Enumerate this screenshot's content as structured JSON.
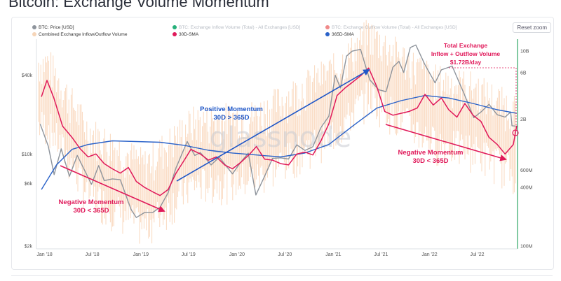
{
  "page_title": "Bitcoin: Exchange Volume Momentum",
  "reset_zoom_label": "Reset zoom",
  "watermark": "glassnode",
  "colors": {
    "price": "#8e949c",
    "volume": "#f6b98a",
    "sma30": "#e0195a",
    "sma365": "#2a62c9",
    "inflow": "#25b07a",
    "outflow": "#f08a8a",
    "vline": "#2ea865"
  },
  "legend": [
    {
      "label": "BTC: Price [USD]",
      "color": "#8e949c",
      "faded": false
    },
    {
      "label": "BTC: Exchange Inflow Volume (Total) - All Exchanges [USD]",
      "color": "#25b07a",
      "faded": true
    },
    {
      "label": "BTC: Exchange Outflow Volume (Total) - All Exchanges [USD]",
      "color": "#f08a8a",
      "faded": true
    },
    {
      "label": "Combined Exchange Inflow/Outflow Volume",
      "color": "#f6d5b8",
      "faded": false
    },
    {
      "label": "30D-SMA",
      "color": "#e0195a",
      "faded": false
    },
    {
      "label": "365D-SMA",
      "color": "#2a62c9",
      "faded": false
    }
  ],
  "annotations": {
    "neg1": [
      "Negative Momentum",
      "30D < 365D"
    ],
    "pos": [
      "Positive Momentum",
      "30D > 365D"
    ],
    "neg2": [
      "Negative Momentum",
      "30D < 365D"
    ],
    "total": [
      "Total Exchange",
      "Inflow + Outflow Volume",
      "$1.72B/day"
    ]
  },
  "chart_data": {
    "type": "line",
    "title": "Bitcoin: Exchange Volume Momentum",
    "x_axis": {
      "type": "date",
      "range": [
        "2017-12",
        "2022-12"
      ],
      "ticks": [
        "Jan '18",
        "Jul '18",
        "Jan '19",
        "Jul '19",
        "Jan '20",
        "Jul '20",
        "Jan '21",
        "Jul '21",
        "Jan '22",
        "Jul '22"
      ]
    },
    "y_left": {
      "scale": "log",
      "unit": "USD",
      "ticks": [
        "$2k",
        "$6k",
        "$10k",
        "$40k"
      ]
    },
    "y_right": {
      "scale": "log",
      "unit": "USD/day",
      "ticks": [
        "100M",
        "400M",
        "600M",
        "2B",
        "6B",
        "10B"
      ]
    },
    "grid": false,
    "legend_position": "top",
    "series": [
      {
        "name": "BTC: Price [USD]",
        "axis": "left",
        "points": [
          [
            "2017-12-15",
            17000
          ],
          [
            "2018-01-15",
            11500
          ],
          [
            "2018-02-06",
            7000
          ],
          [
            "2018-03-05",
            11000
          ],
          [
            "2018-04-05",
            6800
          ],
          [
            "2018-05-05",
            9800
          ],
          [
            "2018-06-28",
            5900
          ],
          [
            "2018-07-25",
            8200
          ],
          [
            "2018-08-15",
            6300
          ],
          [
            "2018-09-15",
            6500
          ],
          [
            "2018-10-15",
            6400
          ],
          [
            "2018-11-25",
            3800
          ],
          [
            "2018-12-15",
            3300
          ],
          [
            "2019-01-15",
            3600
          ],
          [
            "2019-02-15",
            3600
          ],
          [
            "2019-03-15",
            3950
          ],
          [
            "2019-04-15",
            5100
          ],
          [
            "2019-05-15",
            7900
          ],
          [
            "2019-06-26",
            12500
          ],
          [
            "2019-07-25",
            9800
          ],
          [
            "2019-08-15",
            10300
          ],
          [
            "2019-09-25",
            8300
          ],
          [
            "2019-10-26",
            9500
          ],
          [
            "2019-12-15",
            7100
          ],
          [
            "2020-01-15",
            8700
          ],
          [
            "2020-02-13",
            10200
          ],
          [
            "2020-03-13",
            4900
          ],
          [
            "2020-04-15",
            6800
          ],
          [
            "2020-05-15",
            9300
          ],
          [
            "2020-06-15",
            9400
          ],
          [
            "2020-07-15",
            9200
          ],
          [
            "2020-08-15",
            11800
          ],
          [
            "2020-09-15",
            10700
          ],
          [
            "2020-10-15",
            11400
          ],
          [
            "2020-11-15",
            16000
          ],
          [
            "2020-12-15",
            19500
          ],
          [
            "2021-01-08",
            40000
          ],
          [
            "2021-01-28",
            32000
          ],
          [
            "2021-02-20",
            56000
          ],
          [
            "2021-03-13",
            61000
          ],
          [
            "2021-04-14",
            63000
          ],
          [
            "2021-05-19",
            37000
          ],
          [
            "2021-06-22",
            31000
          ],
          [
            "2021-07-20",
            30000
          ],
          [
            "2021-08-15",
            46000
          ],
          [
            "2021-09-07",
            51000
          ],
          [
            "2021-09-25",
            42000
          ],
          [
            "2021-10-20",
            65000
          ],
          [
            "2021-11-10",
            68000
          ],
          [
            "2021-12-15",
            48000
          ],
          [
            "2022-01-22",
            35000
          ],
          [
            "2022-02-15",
            44000
          ],
          [
            "2022-03-28",
            47000
          ],
          [
            "2022-05-12",
            29000
          ],
          [
            "2022-06-18",
            19000
          ],
          [
            "2022-07-15",
            21000
          ],
          [
            "2022-08-15",
            24000
          ],
          [
            "2022-09-15",
            20000
          ],
          [
            "2022-10-15",
            19200
          ],
          [
            "2022-11-05",
            21000
          ],
          [
            "2022-11-10",
            16500
          ],
          [
            "2022-11-25",
            16400
          ]
        ]
      },
      {
        "name": "30D-SMA",
        "axis": "right",
        "points": [
          [
            "2017-12-20",
            3400
          ],
          [
            "2018-01-10",
            5000
          ],
          [
            "2018-02-05",
            3300
          ],
          [
            "2018-03-10",
            1700
          ],
          [
            "2018-04-15",
            1300
          ],
          [
            "2018-05-15",
            1000
          ],
          [
            "2018-06-15",
            820
          ],
          [
            "2018-07-15",
            880
          ],
          [
            "2018-08-15",
            700
          ],
          [
            "2018-09-15",
            620
          ],
          [
            "2018-10-15",
            560
          ],
          [
            "2018-11-15",
            640
          ],
          [
            "2018-12-15",
            460
          ],
          [
            "2019-01-15",
            400
          ],
          [
            "2019-02-15",
            360
          ],
          [
            "2019-03-15",
            330
          ],
          [
            "2019-04-15",
            380
          ],
          [
            "2019-05-15",
            560
          ],
          [
            "2019-06-15",
            760
          ],
          [
            "2019-07-10",
            980
          ],
          [
            "2019-08-15",
            880
          ],
          [
            "2019-09-15",
            760
          ],
          [
            "2019-10-15",
            820
          ],
          [
            "2019-11-15",
            680
          ],
          [
            "2019-12-15",
            620
          ],
          [
            "2020-01-15",
            720
          ],
          [
            "2020-02-15",
            860
          ],
          [
            "2020-03-15",
            1050
          ],
          [
            "2020-04-15",
            780
          ],
          [
            "2020-05-15",
            760
          ],
          [
            "2020-06-15",
            700
          ],
          [
            "2020-07-15",
            680
          ],
          [
            "2020-08-15",
            880
          ],
          [
            "2020-09-15",
            920
          ],
          [
            "2020-10-15",
            860
          ],
          [
            "2020-11-15",
            1200
          ],
          [
            "2020-12-15",
            1800
          ],
          [
            "2021-01-15",
            3500
          ],
          [
            "2021-02-15",
            4200
          ],
          [
            "2021-03-15",
            4800
          ],
          [
            "2021-04-15",
            5600
          ],
          [
            "2021-05-15",
            6700
          ],
          [
            "2021-06-15",
            4300
          ],
          [
            "2021-07-15",
            2400
          ],
          [
            "2021-08-15",
            2200
          ],
          [
            "2021-09-15",
            2300
          ],
          [
            "2021-10-15",
            2400
          ],
          [
            "2021-11-15",
            2600
          ],
          [
            "2021-12-15",
            3600
          ],
          [
            "2022-01-15",
            2800
          ],
          [
            "2022-02-15",
            3300
          ],
          [
            "2022-03-15",
            2500
          ],
          [
            "2022-04-15",
            2100
          ],
          [
            "2022-05-15",
            2900
          ],
          [
            "2022-06-15",
            2200
          ],
          [
            "2022-07-15",
            1900
          ],
          [
            "2022-08-15",
            1300
          ],
          [
            "2022-09-15",
            1100
          ],
          [
            "2022-10-15",
            880
          ],
          [
            "2022-11-15",
            1100
          ],
          [
            "2022-11-28",
            1720
          ]
        ]
      },
      {
        "name": "365D-SMA",
        "axis": "right",
        "points": [
          [
            "2017-12-20",
            380
          ],
          [
            "2018-02-15",
            680
          ],
          [
            "2018-04-15",
            980
          ],
          [
            "2018-06-15",
            1100
          ],
          [
            "2018-09-15",
            1200
          ],
          [
            "2018-12-15",
            1180
          ],
          [
            "2019-03-15",
            1160
          ],
          [
            "2019-06-15",
            1080
          ],
          [
            "2019-09-15",
            960
          ],
          [
            "2019-12-15",
            900
          ],
          [
            "2020-03-15",
            860
          ],
          [
            "2020-06-15",
            820
          ],
          [
            "2020-09-15",
            900
          ],
          [
            "2020-12-15",
            1100
          ],
          [
            "2021-03-15",
            1700
          ],
          [
            "2021-06-15",
            2600
          ],
          [
            "2021-09-15",
            3100
          ],
          [
            "2021-12-15",
            3500
          ],
          [
            "2022-03-15",
            3300
          ],
          [
            "2022-06-15",
            2900
          ],
          [
            "2022-09-15",
            2500
          ],
          [
            "2022-11-28",
            2300
          ]
        ]
      },
      {
        "name": "Combined Exchange Inflow/Outflow Volume",
        "axis": "right",
        "points": [
          [
            "2018-01-15",
            4500
          ],
          [
            "2018-06-15",
            900
          ],
          [
            "2019-01-15",
            400
          ],
          [
            "2019-07-15",
            1100
          ],
          [
            "2020-03-15",
            1300
          ],
          [
            "2021-01-15",
            4000
          ],
          [
            "2021-05-15",
            9000
          ],
          [
            "2022-01-15",
            3000
          ],
          [
            "2022-06-15",
            2500
          ],
          [
            "2022-11-15",
            1500
          ]
        ]
      }
    ],
    "annotations": [
      {
        "text": "Negative Momentum 30D < 365D",
        "from": "2018-01",
        "to": "2019-02"
      },
      {
        "text": "Positive Momentum 30D > 365D",
        "from": "2019-05",
        "to": "2021-04"
      },
      {
        "text": "Negative Momentum 30D < 365D",
        "from": "2021-06",
        "to": "2022-11"
      },
      {
        "text": "Total Exchange Inflow + Outflow Volume",
        "value": "$1.72B/day"
      }
    ]
  }
}
